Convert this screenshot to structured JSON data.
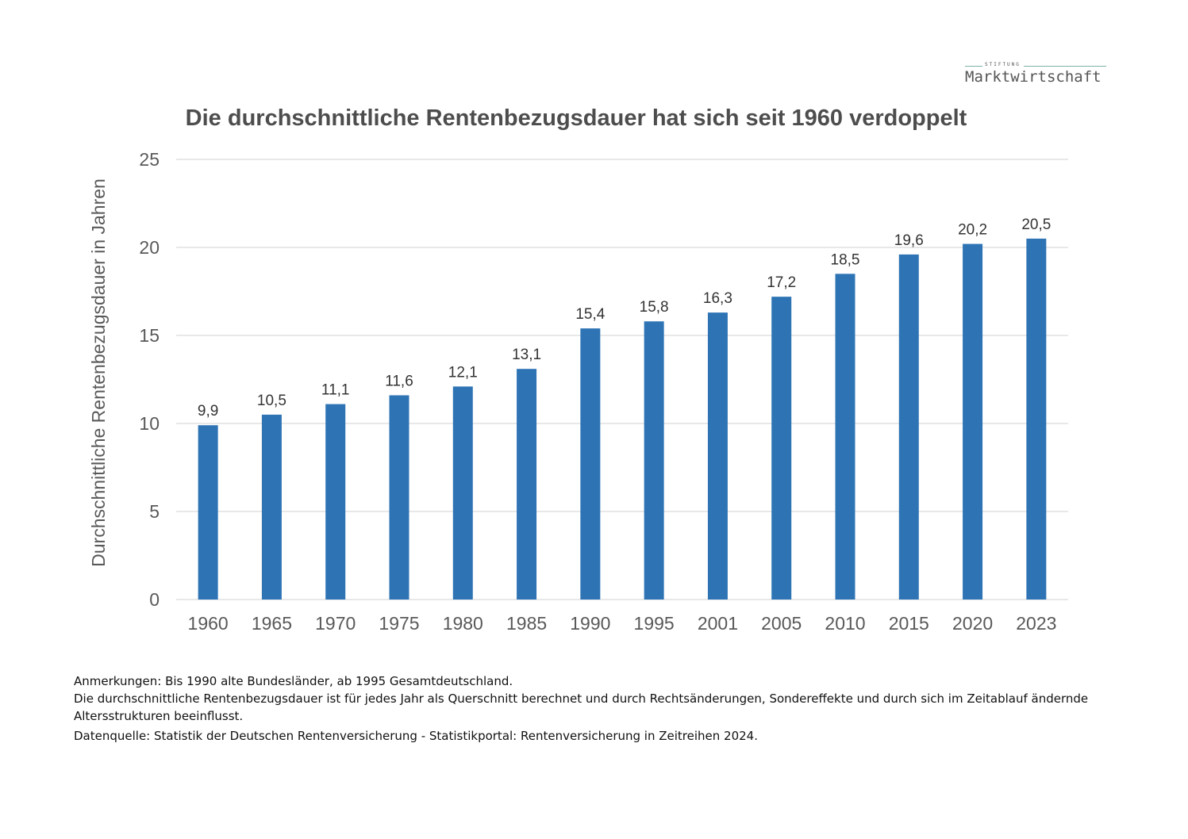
{
  "logo": {
    "top_word": "STIFTUNG",
    "brand": "Marktwirtschaft"
  },
  "notes": {
    "line1": "Anmerkungen: Bis 1990 alte Bundesländer, ab 1995 Gesamtdeutschland.",
    "line2": "Die durchschnittliche Rentenbezugsdauer ist für jedes Jahr als Querschnitt berechnet und durch Rechtsänderungen, Sondereffekte und durch sich im Zeitablauf ändernde Altersstrukturen beeinflusst.",
    "line3": "Datenquelle: Statistik der Deutschen Rentenversicherung - Statistikportal: Rentenversicherung in Zeitreihen 2024."
  },
  "chart_data": {
    "type": "bar",
    "title": "Die durchschnittliche Rentenbezugsdauer hat sich seit 1960 verdoppelt",
    "xlabel": "",
    "ylabel": "Durchschnittliche Rentenbezugsdauer in Jahren",
    "categories": [
      "1960",
      "1965",
      "1970",
      "1975",
      "1980",
      "1985",
      "1990",
      "1995",
      "2001",
      "2005",
      "2010",
      "2015",
      "2020",
      "2023"
    ],
    "values": [
      9.9,
      10.5,
      11.1,
      11.6,
      12.1,
      13.1,
      15.4,
      15.8,
      16.3,
      17.2,
      18.5,
      19.6,
      20.2,
      20.5
    ],
    "data_labels": [
      "9,9",
      "10,5",
      "11,1",
      "11,6",
      "12,1",
      "13,1",
      "15,4",
      "15,8",
      "16,3",
      "17,2",
      "18,5",
      "19,6",
      "20,2",
      "20,5"
    ],
    "yticks": [
      "0",
      "5",
      "10",
      "15",
      "20",
      "25"
    ],
    "ylim": [
      0,
      25
    ],
    "grid": true,
    "legend": "none",
    "bar_color": "#2e74b5",
    "grid_color": "#d9d9d9",
    "tick_color": "#595959"
  }
}
